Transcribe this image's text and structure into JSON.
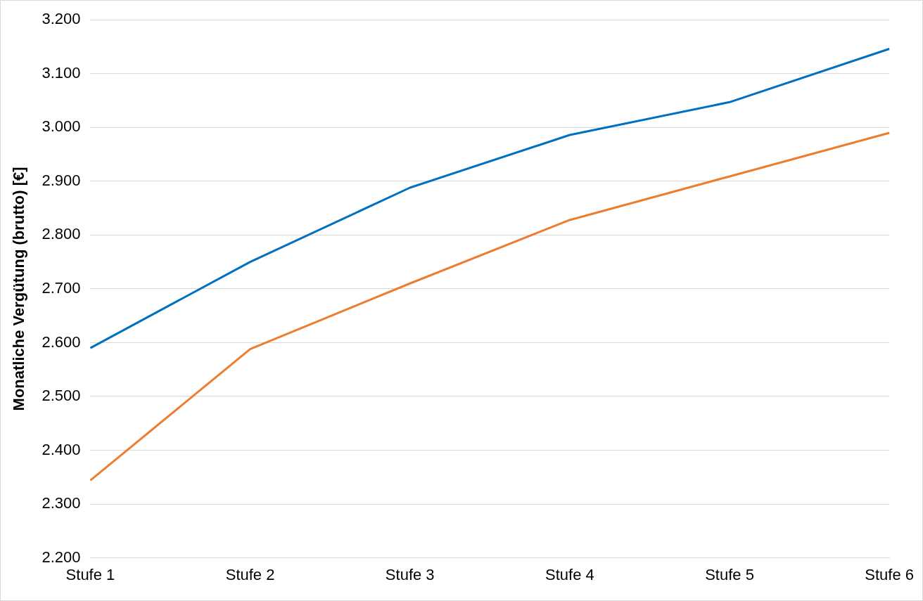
{
  "chart_data": {
    "type": "line",
    "ylabel": "Monatliche Vergütung (brutto) [€]",
    "categories": [
      "Stufe 1",
      "Stufe 2",
      "Stufe 3",
      "Stufe 4",
      "Stufe 5",
      "Stufe 6"
    ],
    "series": [
      {
        "color": "#0070c0",
        "values": [
          2590,
          2750,
          2888,
          2986,
          3047,
          3146
        ]
      },
      {
        "color": "#ed7d31",
        "values": [
          2344,
          2588,
          2710,
          2828,
          2909,
          2990
        ]
      }
    ],
    "ylim": [
      2200,
      3200
    ],
    "yticks": [
      {
        "value": 2200,
        "label": "2.200"
      },
      {
        "value": 2300,
        "label": "2.300"
      },
      {
        "value": 2400,
        "label": "2.400"
      },
      {
        "value": 2500,
        "label": "2.500"
      },
      {
        "value": 2600,
        "label": "2.600"
      },
      {
        "value": 2700,
        "label": "2.700"
      },
      {
        "value": 2800,
        "label": "2.800"
      },
      {
        "value": 2900,
        "label": "2.900"
      },
      {
        "value": 3000,
        "label": "3.000"
      },
      {
        "value": 3100,
        "label": "3.100"
      },
      {
        "value": 3200,
        "label": "3.200"
      }
    ],
    "grid": "y",
    "marker": "none",
    "legend": false
  }
}
